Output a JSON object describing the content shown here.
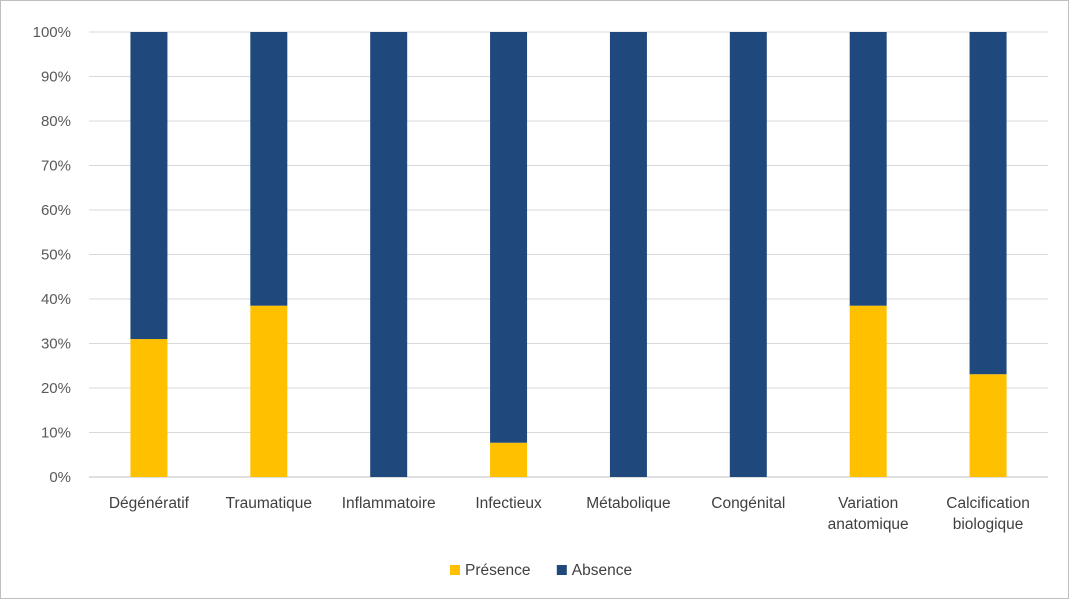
{
  "chart_data": {
    "type": "bar",
    "stacked": true,
    "categories": [
      [
        "Dégénératif"
      ],
      [
        "Traumatique"
      ],
      [
        "Inflammatoire"
      ],
      [
        "Infectieux"
      ],
      [
        "Métabolique"
      ],
      [
        "Congénital"
      ],
      [
        "Variation",
        "anatomique"
      ],
      [
        "Calcification",
        "biologique"
      ]
    ],
    "series": [
      {
        "name": "Présence",
        "color": "#ffc000",
        "values": [
          0.31,
          0.385,
          0,
          0.077,
          0,
          0,
          0.385,
          0.231
        ]
      },
      {
        "name": "Absence",
        "color": "#1f497d",
        "values": [
          0.69,
          0.615,
          1,
          0.923,
          1,
          1,
          0.615,
          0.769
        ]
      }
    ],
    "ylim": [
      0,
      1
    ],
    "yticks": [
      "0%",
      "10%",
      "20%",
      "30%",
      "40%",
      "50%",
      "60%",
      "70%",
      "80%",
      "90%",
      "100%"
    ],
    "grid": true,
    "legend_position": "bottom"
  }
}
